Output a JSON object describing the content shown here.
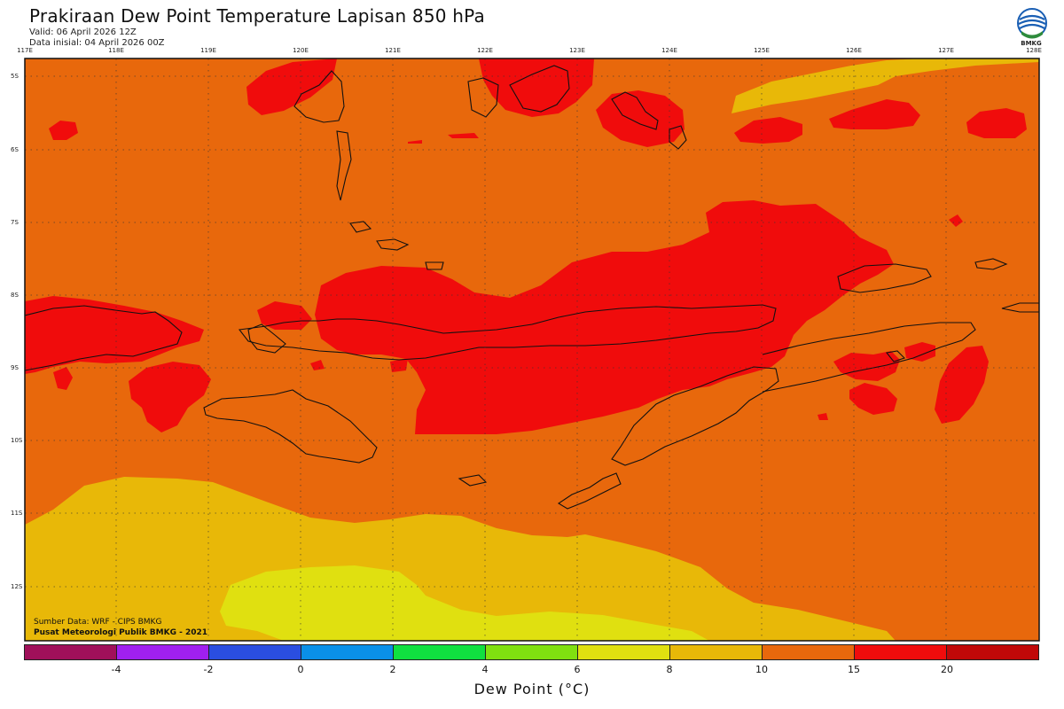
{
  "header": {
    "title": "Prakiraan Dew Point Temperature Lapisan 850 hPa",
    "valid": "Valid: 06 April 2026 12Z",
    "initial": "Data inisial: 04 April 2026 00Z"
  },
  "logo": {
    "text": "BMKG",
    "icon": "bmkg-logo-icon"
  },
  "axes": {
    "lon_ticks": [
      "117E",
      "118E",
      "119E",
      "120E",
      "121E",
      "122E",
      "123E",
      "124E",
      "125E",
      "126E",
      "127E",
      "128E"
    ],
    "lat_ticks": [
      "5S",
      "6S",
      "7S",
      "8S",
      "9S",
      "10S",
      "11S",
      "12S"
    ]
  },
  "credits": {
    "source": "Sumber Data: WRF - CIPS BMKG",
    "org": "Pusat Meteorologi Publik BMKG - 2021"
  },
  "colorbar": {
    "colors": [
      "#a0105a",
      "#a020f0",
      "#2a4ee0",
      "#0a90e8",
      "#10e040",
      "#80e010",
      "#e0e010",
      "#e8b808",
      "#e8680c",
      "#f00c0c",
      "#c00808"
    ],
    "labels": [
      "-4",
      "-2",
      "0",
      "2",
      "4",
      "6",
      "8",
      "10",
      "15",
      "20"
    ],
    "title": "Dew Point (°C)"
  },
  "fill_colors": {
    "orange": "#e8680c",
    "red": "#f00c0c",
    "gold": "#e8b808",
    "yellow": "#e0e010"
  }
}
